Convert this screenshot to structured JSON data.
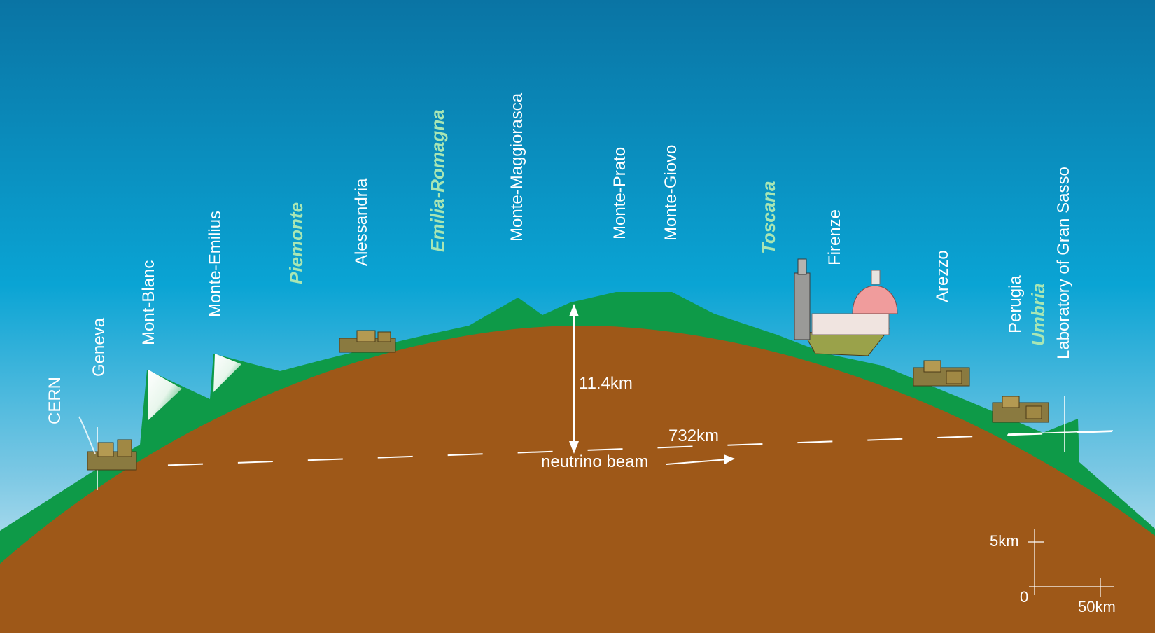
{
  "places": {
    "cern": "CERN",
    "geneva": "Geneva",
    "mont_blanc": "Mont-Blanc",
    "monte_emilius": "Monte-Emilius",
    "alessandria": "Alessandria",
    "monte_maggiorasca": "Monte-Maggiorasca",
    "monte_prato": "Monte-Prato",
    "monte_giovo": "Monte-Giovo",
    "firenze": "Firenze",
    "arezzo": "Arezzo",
    "perugia": "Perugia",
    "laboratory": "Laboratory of Gran Sasso"
  },
  "regions": {
    "piemonte": "Piemonte",
    "emilia_romagna": "Emilia-Romagna",
    "toscana": "Toscana",
    "umbria": "Umbria"
  },
  "measurements": {
    "depth": "11.4km",
    "distance": "732km",
    "beam": "neutrino beam"
  },
  "scale": {
    "vertical": "5km",
    "origin": "0",
    "horizontal": "50km"
  },
  "colors": {
    "sky_top": "#0a74a4",
    "sky_bottom": "#d8ecf4",
    "terrain": "#0e9a48",
    "earth": "#9e5818",
    "region_text": "#a8e6b4"
  }
}
